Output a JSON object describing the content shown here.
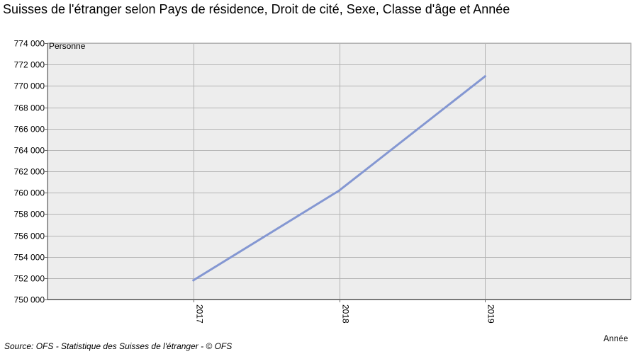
{
  "chart_data": {
    "type": "line",
    "title": "Suisses de l'étranger selon Pays de résidence, Droit de cité, Sexe, Classe d'âge et Année",
    "ylabel": "Personne",
    "xlabel": "Année",
    "x": [
      "2017",
      "2018",
      "2019"
    ],
    "xlim": [
      2016,
      2020
    ],
    "series": [
      {
        "values": [
          751800,
          760200,
          770900
        ],
        "color": "#8497d2"
      }
    ],
    "ylim": [
      750000,
      774000
    ],
    "yticks": [
      750000,
      752000,
      754000,
      756000,
      758000,
      760000,
      762000,
      764000,
      766000,
      768000,
      770000,
      772000,
      774000
    ],
    "ytick_labels": [
      "750 000",
      "752 000",
      "754 000",
      "756 000",
      "758 000",
      "760 000",
      "762 000",
      "764 000",
      "766 000",
      "768 000",
      "770 000",
      "772 000",
      "774 000"
    ],
    "grid": true,
    "background_color": "#ededed",
    "grid_color": "#b4b4b4",
    "source": "Source: OFS - Statistique des Suisses de l'étranger - © OFS"
  }
}
